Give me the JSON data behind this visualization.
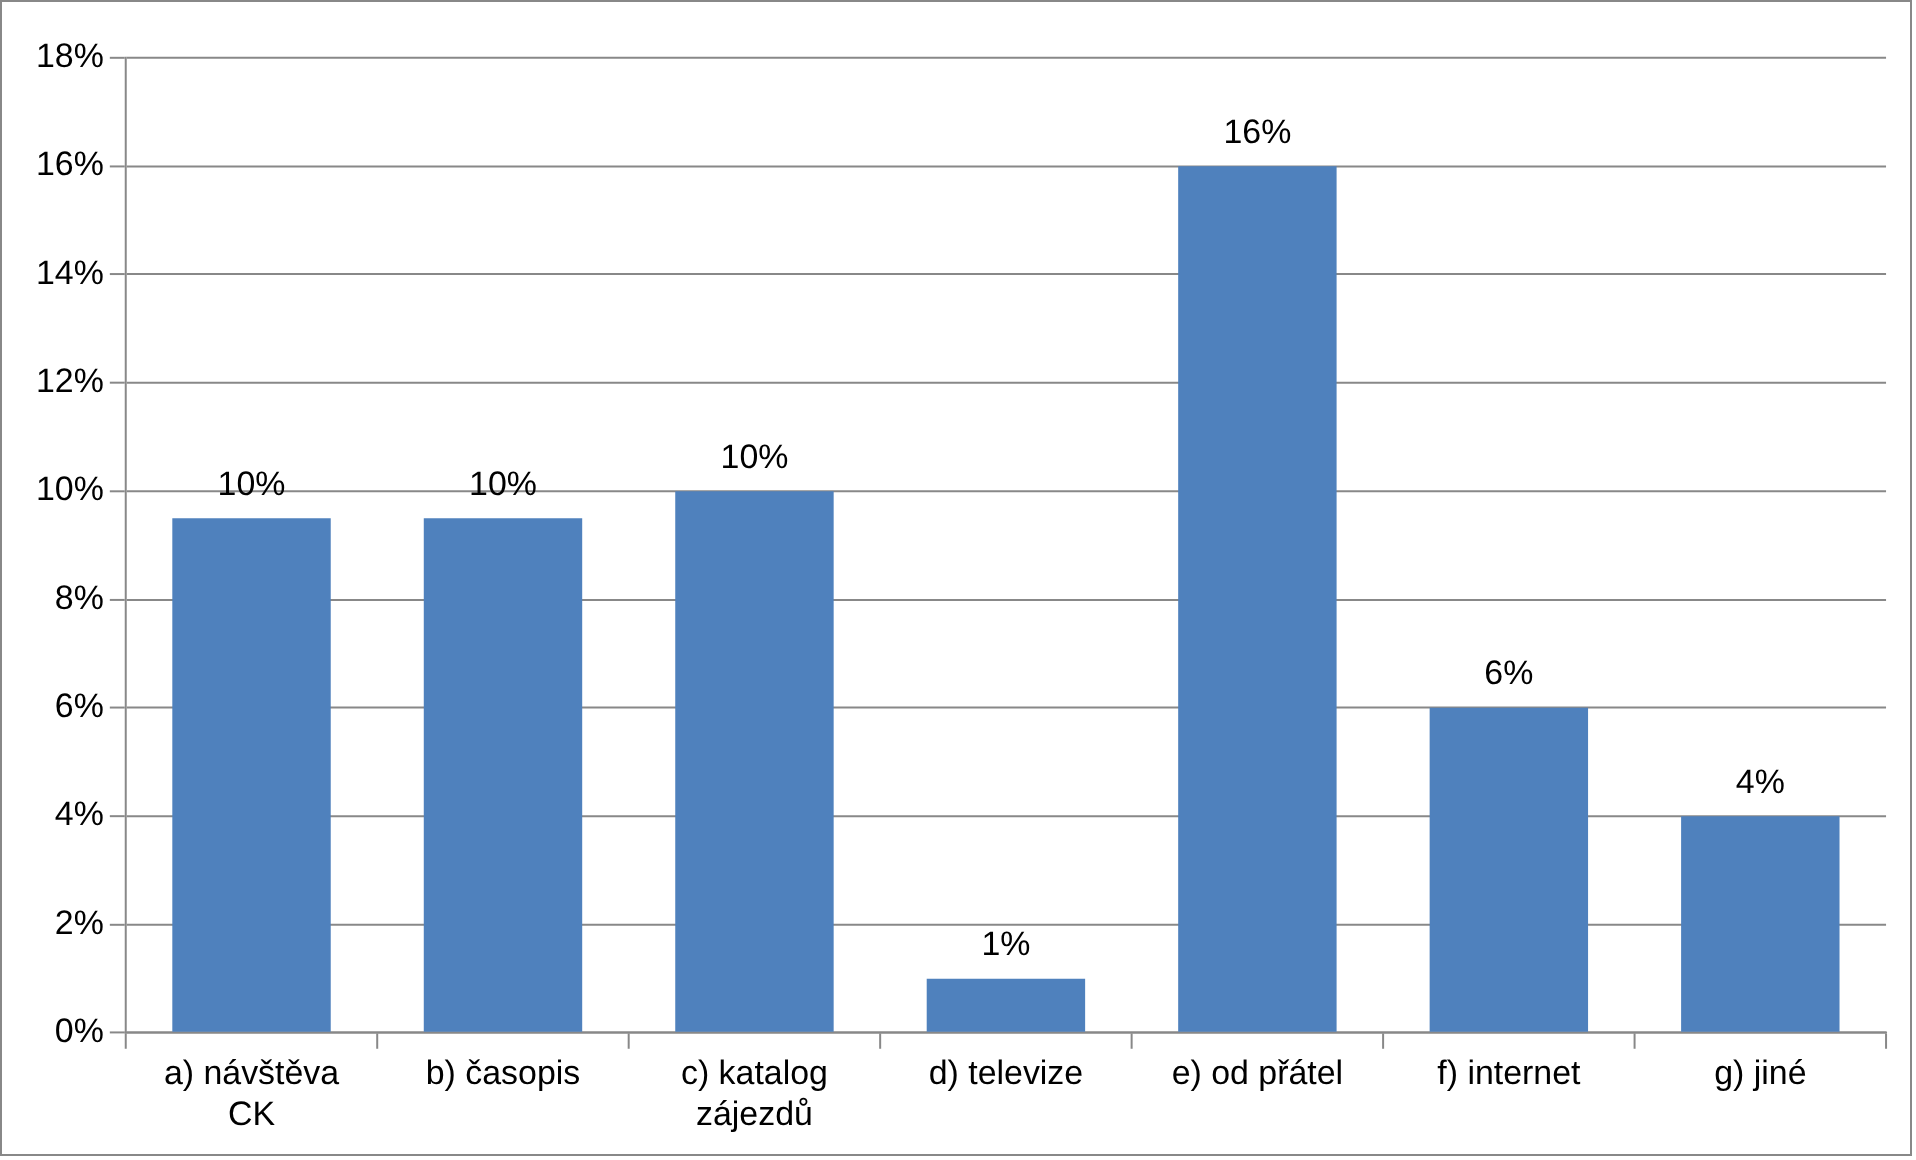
{
  "chart_data": {
    "type": "bar",
    "categories": [
      "a) návštěva CK",
      "b) časopis",
      "c) katalog zájezdů",
      "d) televize",
      "e) od přátel",
      "f) internet",
      "g) jiné"
    ],
    "values": [
      9.5,
      9.5,
      10,
      1,
      16,
      6,
      4
    ],
    "value_labels": [
      "10%",
      "10%",
      "10%",
      "1%",
      "16%",
      "6%",
      "4%"
    ],
    "color": "#4f81bd",
    "ylim": [
      0,
      18
    ],
    "yticks": [
      {
        "value": 0,
        "label": "0%"
      },
      {
        "value": 2,
        "label": "2%"
      },
      {
        "value": 4,
        "label": "4%"
      },
      {
        "value": 6,
        "label": "6%"
      },
      {
        "value": 8,
        "label": "8%"
      },
      {
        "value": 10,
        "label": "10%"
      },
      {
        "value": 12,
        "label": "12%"
      },
      {
        "value": 14,
        "label": "14%"
      },
      {
        "value": 16,
        "label": "16%"
      },
      {
        "value": 18,
        "label": "18%"
      }
    ],
    "grid": "y"
  }
}
